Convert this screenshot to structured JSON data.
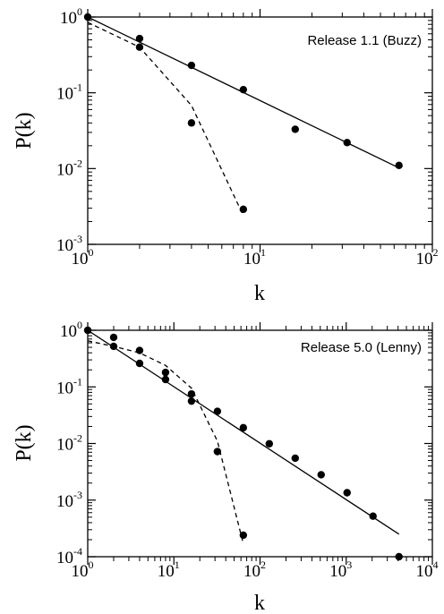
{
  "chart_data": [
    {
      "type": "scatter",
      "title": "Release 1.1 (Buzz)",
      "xlabel": "k",
      "ylabel": "P(k)",
      "xscale": "log",
      "yscale": "log",
      "xlim": [
        1,
        100
      ],
      "ylim": [
        0.001,
        1
      ],
      "x_ticks": [
        {
          "base": "10",
          "exp": "0"
        },
        {
          "base": "10",
          "exp": "1"
        },
        {
          "base": "10",
          "exp": "2"
        }
      ],
      "y_ticks": [
        {
          "base": "10",
          "exp": "-3"
        },
        {
          "base": "10",
          "exp": "-2"
        },
        {
          "base": "10",
          "exp": "-1"
        },
        {
          "base": "10",
          "exp": "0"
        }
      ],
      "legend": "top-right",
      "grid": false,
      "series": [
        {
          "style": "markers",
          "x": [
            1,
            2,
            4,
            8,
            16,
            32,
            64
          ],
          "y": [
            1.0,
            0.52,
            0.23,
            0.11,
            0.033,
            0.022,
            0.011
          ]
        },
        {
          "style": "markers",
          "x": [
            2,
            4,
            8
          ],
          "y": [
            0.4,
            0.04,
            0.0029
          ]
        },
        {
          "style": "solid-line",
          "x": [
            1,
            64
          ],
          "y": [
            1.0,
            0.0102
          ]
        },
        {
          "style": "dashed-line",
          "x": [
            1,
            2,
            4,
            8
          ],
          "y": [
            0.85,
            0.4,
            0.068,
            0.0024
          ]
        }
      ]
    },
    {
      "type": "scatter",
      "title": "Release 5.0 (Lenny)",
      "xlabel": "k",
      "ylabel": "P(k)",
      "xscale": "log",
      "yscale": "log",
      "xlim": [
        1,
        10000
      ],
      "ylim": [
        0.0001,
        1
      ],
      "x_ticks": [
        {
          "base": "10",
          "exp": "0"
        },
        {
          "base": "10",
          "exp": "1"
        },
        {
          "base": "10",
          "exp": "2"
        },
        {
          "base": "10",
          "exp": "3"
        },
        {
          "base": "10",
          "exp": "4"
        }
      ],
      "y_ticks": [
        {
          "base": "10",
          "exp": "-4"
        },
        {
          "base": "10",
          "exp": "-3"
        },
        {
          "base": "10",
          "exp": "-2"
        },
        {
          "base": "10",
          "exp": "-1"
        },
        {
          "base": "10",
          "exp": "0"
        }
      ],
      "legend": "top-right",
      "grid": false,
      "series": [
        {
          "style": "markers",
          "x": [
            1,
            2,
            4,
            8,
            16,
            32,
            64,
            128,
            256,
            512,
            1024,
            2048,
            4096
          ],
          "y": [
            1.0,
            0.52,
            0.26,
            0.135,
            0.075,
            0.037,
            0.019,
            0.0099,
            0.0055,
            0.0028,
            0.00135,
            0.00052,
            0.0001
          ]
        },
        {
          "style": "markers",
          "x": [
            2,
            4,
            8,
            16,
            32,
            64
          ],
          "y": [
            0.75,
            0.44,
            0.18,
            0.056,
            0.0072,
            0.00024
          ]
        },
        {
          "style": "solid-line",
          "x": [
            1,
            4096
          ],
          "y": [
            1.0,
            0.00025
          ]
        },
        {
          "style": "dashed-line",
          "x": [
            1,
            2,
            4,
            8,
            16,
            32,
            64
          ],
          "y": [
            0.65,
            0.52,
            0.4,
            0.24,
            0.095,
            0.011,
            0.00017
          ]
        }
      ]
    }
  ]
}
